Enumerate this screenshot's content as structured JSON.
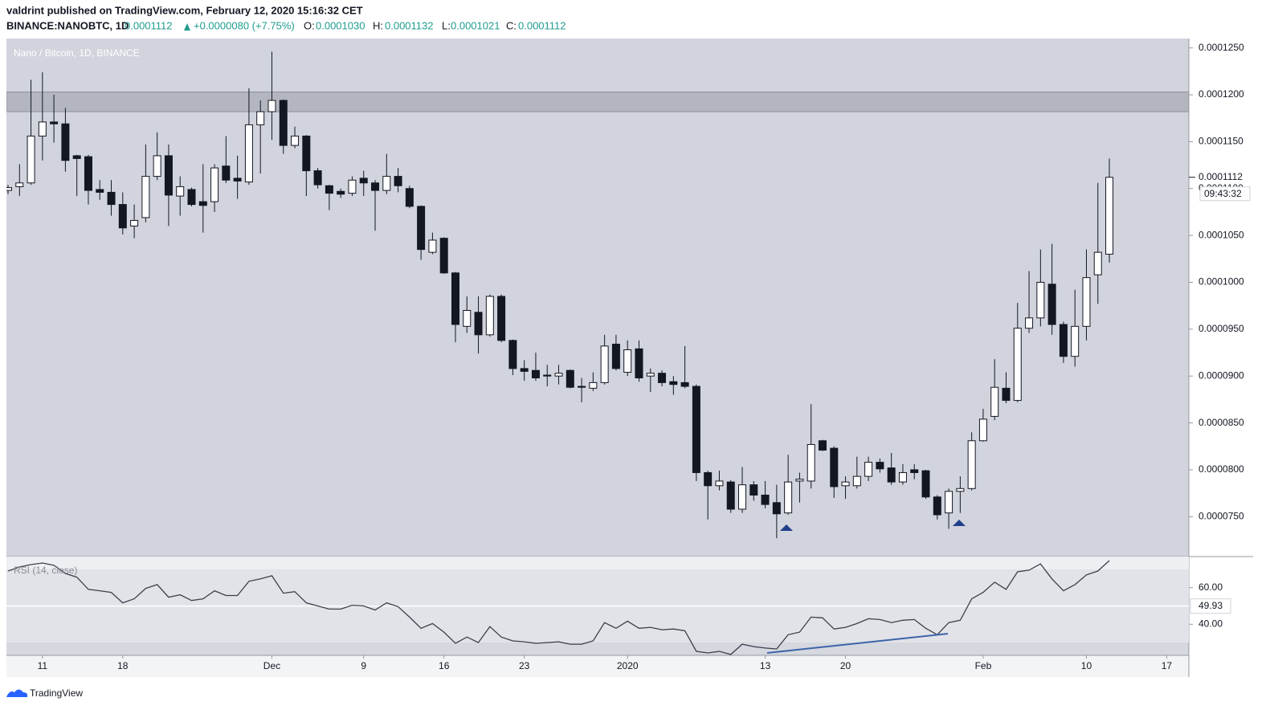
{
  "header": {
    "published": "valdrint published on TradingView.com, February 12, 2020 15:16:32 CET",
    "symbol": "BINANCE:NANOBTC, 1D",
    "last": "0.0001112",
    "change": "+0.0000080 (+7.75%)",
    "o_label": "O:",
    "o_value": "0.0001030",
    "h_label": "H:",
    "h_value": "0.0001132",
    "l_label": "L:",
    "l_value": "0.0001021",
    "c_label": "C:",
    "c_value": "0.0001112",
    "footer": "TradingView"
  },
  "chart_data": {
    "type": "candlestick",
    "title": "Nano / Bitcoin, 1D, BINANCE",
    "up_color": "#ffffff",
    "down_color": "#131722",
    "outline_color": "#131722",
    "x": [
      "2019-11-08",
      "2019-11-09",
      "2019-11-10",
      "2019-11-11",
      "2019-11-12",
      "2019-11-13",
      "2019-11-14",
      "2019-11-15",
      "2019-11-16",
      "2019-11-17",
      "2019-11-18",
      "2019-11-19",
      "2019-11-20",
      "2019-11-21",
      "2019-11-22",
      "2019-11-23",
      "2019-11-24",
      "2019-11-25",
      "2019-11-26",
      "2019-11-27",
      "2019-11-28",
      "2019-11-29",
      "2019-11-30",
      "2019-12-01",
      "2019-12-02",
      "2019-12-03",
      "2019-12-04",
      "2019-12-05",
      "2019-12-06",
      "2019-12-07",
      "2019-12-08",
      "2019-12-09",
      "2019-12-10",
      "2019-12-11",
      "2019-12-12",
      "2019-12-13",
      "2019-12-14",
      "2019-12-15",
      "2019-12-16",
      "2019-12-17",
      "2019-12-18",
      "2019-12-19",
      "2019-12-20",
      "2019-12-21",
      "2019-12-22",
      "2019-12-23",
      "2019-12-24",
      "2019-12-25",
      "2019-12-26",
      "2019-12-27",
      "2019-12-28",
      "2019-12-29",
      "2019-12-30",
      "2019-12-31",
      "2020-01-01",
      "2020-01-02",
      "2020-01-03",
      "2020-01-04",
      "2020-01-05",
      "2020-01-06",
      "2020-01-07",
      "2020-01-08",
      "2020-01-09",
      "2020-01-10",
      "2020-01-11",
      "2020-01-12",
      "2020-01-13",
      "2020-01-14",
      "2020-01-15",
      "2020-01-16",
      "2020-01-17",
      "2020-01-18",
      "2020-01-19",
      "2020-01-20",
      "2020-01-21",
      "2020-01-22",
      "2020-01-23",
      "2020-01-24",
      "2020-01-25",
      "2020-01-26",
      "2020-01-27",
      "2020-01-28",
      "2020-01-29",
      "2020-01-30",
      "2020-01-31",
      "2020-02-01",
      "2020-02-02",
      "2020-02-03",
      "2020-02-04",
      "2020-02-05",
      "2020-02-06",
      "2020-02-07",
      "2020-02-08",
      "2020-02-09",
      "2020-02-10",
      "2020-02-11",
      "2020-02-12"
    ],
    "open": [
      0.0001098,
      0.0001102,
      0.0001106,
      0.0001156,
      0.0001171,
      0.0001169,
      0.0001135,
      0.0001134,
      0.0001099,
      0.0001096,
      0.0001083,
      0.000106,
      0.0001069,
      0.0001113,
      0.0001135,
      0.0001092,
      0.0001099,
      0.0001086,
      0.0001086,
      0.0001124,
      0.0001111,
      0.0001107,
      0.0001168,
      0.0001182,
      0.0001194,
      0.0001146,
      0.0001156,
      0.0001119,
      0.0001103,
      0.0001097,
      0.0001095,
      0.0001111,
      0.0001106,
      0.0001098,
      0.0001113,
      0.00011,
      0.0001081,
      0.0001032,
      0.0001047,
      0.000101,
      9.53e-05,
      9.68e-05,
      9.44e-05,
      9.85e-05,
      9.38e-05,
      9.08e-05,
      9.06e-05,
      9.01e-05,
      9e-05,
      9.06e-05,
      8.89e-05,
      8.87e-05,
      8.93e-05,
      9.34e-05,
      9.04e-05,
      9.29e-05,
      9e-05,
      9.03e-05,
      8.94e-05,
      8.93e-05,
      8.89e-05,
      7.97e-05,
      7.83e-05,
      7.87e-05,
      7.58e-05,
      7.84e-05,
      7.73e-05,
      7.65e-05,
      7.54e-05,
      7.88e-05,
      7.88e-05,
      8.31e-05,
      8.23e-05,
      7.83e-05,
      7.83e-05,
      7.93e-05,
      8.08e-05,
      8.02e-05,
      7.87e-05,
      8e-05,
      7.99e-05,
      7.71e-05,
      7.54e-05,
      7.77e-05,
      7.8e-05,
      8.31e-05,
      8.57e-05,
      8.87e-05,
      8.74e-05,
      9.51e-05,
      9.62e-05,
      9.98e-05,
      9.55e-05,
      9.21e-05,
      9.53e-05,
      0.0001008,
      0.000103
    ],
    "high": [
      0.0001104,
      0.0001126,
      0.0001216,
      0.0001224,
      0.00012,
      0.0001186,
      0.0001136,
      0.0001136,
      0.0001109,
      0.0001109,
      0.0001096,
      0.0001083,
      0.0001147,
      0.000116,
      0.0001147,
      0.0001113,
      0.0001101,
      0.0001126,
      0.0001126,
      0.0001156,
      0.0001135,
      0.0001207,
      0.0001194,
      0.0001246,
      0.0001195,
      0.0001166,
      0.0001157,
      0.0001122,
      0.0001104,
      0.00011,
      0.0001113,
      0.0001119,
      0.0001109,
      0.0001137,
      0.0001122,
      0.0001103,
      0.0001082,
      0.0001053,
      0.0001048,
      0.0001011,
      9.85e-05,
      9.85e-05,
      9.87e-05,
      9.87e-05,
      9.39e-05,
      9.17e-05,
      9.25e-05,
      9.12e-05,
      9.12e-05,
      9.07e-05,
      8.98e-05,
      9.04e-05,
      9.44e-05,
      9.44e-05,
      9.38e-05,
      9.38e-05,
      9.08e-05,
      9.06e-05,
      9e-05,
      9.32e-05,
      8.91e-05,
      7.99e-05,
      7.99e-05,
      7.89e-05,
      8.03e-05,
      7.88e-05,
      7.88e-05,
      7.84e-05,
      8.16e-05,
      7.97e-05,
      8.7e-05,
      8.32e-05,
      8.25e-05,
      7.93e-05,
      8.14e-05,
      8.14e-05,
      8.12e-05,
      8.18e-05,
      8.06e-05,
      8.06e-05,
      8e-05,
      7.73e-05,
      7.8e-05,
      7.93e-05,
      8.4e-05,
      8.65e-05,
      9.18e-05,
      9.04e-05,
      9.78e-05,
      0.0001012,
      0.0001035,
      0.0001041,
      9.58e-05,
      9.92e-05,
      0.0001035,
      0.0001106,
      0.0001132
    ],
    "low": [
      0.0001094,
      0.0001092,
      0.0001104,
      0.000113,
      0.0001149,
      0.0001118,
      0.0001092,
      0.0001083,
      0.0001088,
      0.0001071,
      0.0001051,
      0.0001047,
      0.0001064,
      0.0001109,
      0.000106,
      0.0001071,
      0.0001081,
      0.0001053,
      0.0001075,
      0.0001106,
      0.0001089,
      0.0001104,
      0.0001116,
      0.0001152,
      0.0001137,
      0.0001143,
      0.0001092,
      0.00011,
      0.0001077,
      0.000109,
      0.0001092,
      0.0001092,
      0.0001055,
      0.0001094,
      0.0001096,
      0.0001079,
      0.0001024,
      0.000103,
      0.0001009,
      9.36e-05,
      9.46e-05,
      9.24e-05,
      9.42e-05,
      9.36e-05,
      9.01e-05,
      8.95e-05,
      8.95e-05,
      8.89e-05,
      8.91e-05,
      8.87e-05,
      8.72e-05,
      8.84e-05,
      8.91e-05,
      9.06e-05,
      9e-05,
      8.94e-05,
      8.83e-05,
      8.89e-05,
      8.8e-05,
      8.87e-05,
      7.88e-05,
      7.47e-05,
      7.78e-05,
      7.54e-05,
      7.54e-05,
      7.67e-05,
      7.59e-05,
      7.27e-05,
      7.52e-05,
      7.65e-05,
      7.8e-05,
      8.2e-05,
      7.7e-05,
      7.69e-05,
      7.8e-05,
      7.88e-05,
      7.97e-05,
      7.84e-05,
      7.84e-05,
      7.9e-05,
      7.69e-05,
      7.47e-05,
      7.37e-05,
      7.54e-05,
      7.78e-05,
      8.3e-05,
      8.53e-05,
      8.71e-05,
      8.72e-05,
      9.46e-05,
      9.53e-05,
      9.44e-05,
      9.14e-05,
      9.1e-05,
      9.38e-05,
      9.77e-05,
      0.0001021
    ],
    "close": [
      0.0001101,
      0.0001106,
      0.0001156,
      0.0001171,
      0.0001169,
      0.000113,
      0.0001132,
      0.0001098,
      0.0001096,
      0.0001083,
      0.0001058,
      0.0001066,
      0.0001113,
      0.0001135,
      0.0001093,
      0.0001102,
      0.0001083,
      0.0001082,
      0.0001122,
      0.0001109,
      0.0001108,
      0.0001168,
      0.0001182,
      0.0001194,
      0.0001146,
      0.0001156,
      0.0001119,
      0.0001104,
      0.0001095,
      0.0001094,
      0.0001109,
      0.0001106,
      0.0001098,
      0.0001113,
      0.0001103,
      0.0001081,
      0.0001035,
      0.0001045,
      0.000101,
      9.55e-05,
      9.7e-05,
      9.44e-05,
      9.85e-05,
      9.38e-05,
      9.08e-05,
      9.05e-05,
      8.98e-05,
      9e-05,
      9.03e-05,
      8.88e-05,
      8.88e-05,
      8.93e-05,
      9.32e-05,
      9.08e-05,
      9.28e-05,
      8.98e-05,
      9.03e-05,
      8.93e-05,
      8.91e-05,
      8.89e-05,
      7.97e-05,
      7.83e-05,
      7.88e-05,
      7.58e-05,
      7.84e-05,
      7.73e-05,
      7.63e-05,
      7.53e-05,
      7.87e-05,
      7.9e-05,
      8.27e-05,
      8.21e-05,
      7.82e-05,
      7.87e-05,
      7.93e-05,
      8.08e-05,
      8.01e-05,
      7.87e-05,
      7.97e-05,
      7.97e-05,
      7.71e-05,
      7.52e-05,
      7.77e-05,
      7.8e-05,
      8.31e-05,
      8.54e-05,
      8.88e-05,
      8.74e-05,
      9.51e-05,
      9.62e-05,
      0.0001,
      9.55e-05,
      9.21e-05,
      9.53e-05,
      0.0001005,
      0.0001032,
      0.0001112
    ],
    "xlim": [
      "2019-11-08",
      "2020-02-19"
    ],
    "xticks": [
      {
        "value": "2019-11-11",
        "label": "11"
      },
      {
        "value": "2019-11-18",
        "label": "18"
      },
      {
        "value": "2019-12-01",
        "label": "Dec"
      },
      {
        "value": "2019-12-09",
        "label": "9"
      },
      {
        "value": "2019-12-16",
        "label": "16"
      },
      {
        "value": "2019-12-23",
        "label": "23"
      },
      {
        "value": "2020-01-01",
        "label": "2020"
      },
      {
        "value": "2020-01-13",
        "label": "13"
      },
      {
        "value": "2020-01-20",
        "label": "20"
      },
      {
        "value": "2020-02-01",
        "label": "Feb"
      },
      {
        "value": "2020-02-10",
        "label": "10"
      },
      {
        "value": "2020-02-17",
        "label": "17"
      }
    ],
    "ylim": [
      7.1e-05,
      0.000126
    ],
    "yticks": [
      {
        "value": 7.5e-05,
        "label": "0.0000750"
      },
      {
        "value": 8e-05,
        "label": "0.0000800"
      },
      {
        "value": 8.5e-05,
        "label": "0.0000850"
      },
      {
        "value": 9e-05,
        "label": "0.0000900"
      },
      {
        "value": 9.5e-05,
        "label": "0.0000950"
      },
      {
        "value": 0.0001,
        "label": "0.0001000"
      },
      {
        "value": 0.000105,
        "label": "0.0001050"
      },
      {
        "value": 0.00011,
        "label": "0.0001100"
      },
      {
        "value": 0.000115,
        "label": "0.0001150"
      },
      {
        "value": 0.00012,
        "label": "0.0001200"
      },
      {
        "value": 0.000125,
        "label": "0.0001250"
      }
    ],
    "zone": [
      0.0001182,
      0.0001203
    ],
    "last_price": {
      "value": 0.0001112,
      "label": "0.0001112"
    },
    "countdown": "09:43:32",
    "rsi": {
      "label": "RSI (14, close)",
      "color": "#131722",
      "values": [
        69.1,
        71.3,
        72.6,
        73.5,
        72.2,
        67.8,
        65.7,
        59.1,
        58.3,
        57.4,
        51.7,
        53.9,
        59.6,
        61.7,
        54.8,
        56.1,
        53.0,
        53.9,
        58.3,
        55.7,
        55.7,
        63.5,
        64.8,
        66.5,
        57.0,
        57.8,
        51.7,
        50.0,
        48.3,
        48.3,
        50.4,
        50.0,
        47.8,
        51.7,
        49.6,
        43.9,
        37.8,
        40.4,
        35.7,
        29.6,
        33.0,
        30.0,
        38.7,
        33.0,
        30.9,
        30.4,
        29.6,
        30.0,
        30.4,
        29.1,
        29.1,
        30.9,
        40.9,
        37.8,
        41.7,
        37.8,
        38.3,
        37.0,
        37.4,
        36.5,
        25.2,
        24.3,
        25.2,
        23.5,
        29.1,
        27.8,
        27.0,
        26.5,
        34.3,
        35.7,
        43.9,
        43.5,
        37.4,
        38.3,
        40.4,
        43.0,
        42.6,
        40.9,
        42.2,
        42.6,
        37.8,
        34.3,
        40.9,
        42.2,
        53.9,
        57.4,
        63.0,
        59.1,
        68.7,
        69.6,
        73.0,
        64.8,
        58.3,
        61.7,
        67.0,
        69.1,
        74.8
      ],
      "ylim": [
        23,
        77
      ],
      "yticks": [
        {
          "value": 60,
          "label": "60.00"
        },
        {
          "value": 40,
          "label": "40.00"
        }
      ],
      "band": [
        30,
        70
      ],
      "level": 49.93
    }
  }
}
